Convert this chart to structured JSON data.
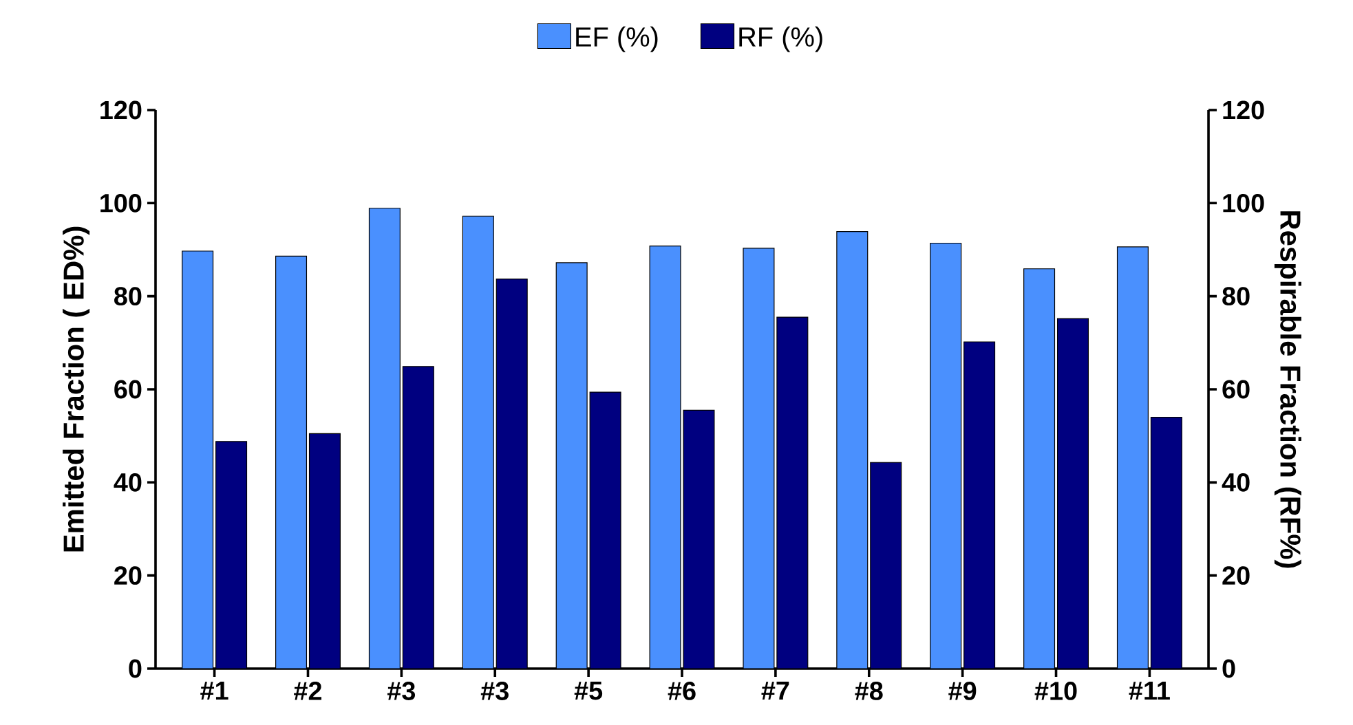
{
  "chart_data": {
    "type": "bar",
    "categories": [
      "#1",
      "#2",
      "#3",
      "#3",
      "#5",
      "#6",
      "#7",
      "#8",
      "#9",
      "#10",
      "#11"
    ],
    "series": [
      {
        "name": "EF (%)",
        "color": "#4a90fe",
        "values": [
          89.7,
          88.6,
          98.9,
          97.2,
          87.2,
          90.8,
          90.3,
          93.9,
          91.4,
          85.9,
          90.6
        ]
      },
      {
        "name": "RF (%)",
        "color": "#000080",
        "axis": "y2",
        "values": [
          48.8,
          50.5,
          64.9,
          83.7,
          59.4,
          55.5,
          75.5,
          44.3,
          70.2,
          75.2,
          54.0
        ]
      }
    ],
    "ylabel": "Emitted Fraction ( ED%)",
    "y2label": "Respirable Fraction (RF%)",
    "ylim": [
      0,
      120
    ],
    "yticks": [
      0,
      20,
      40,
      60,
      80,
      100,
      120
    ],
    "y2lim": [
      0,
      120
    ],
    "y2ticks": [
      0,
      20,
      40,
      60,
      80,
      100,
      120
    ],
    "legend": "top"
  }
}
